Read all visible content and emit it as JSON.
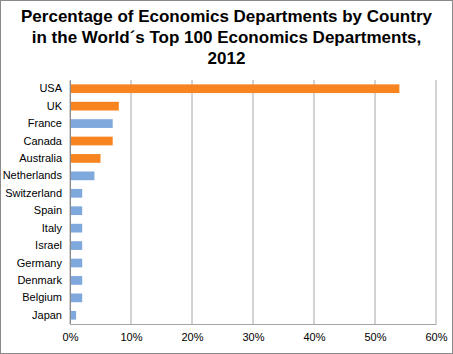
{
  "chart_data": {
    "type": "bar",
    "orientation": "horizontal",
    "title": "Percentage of Economics Departments by Country in the World´s Top 100 Economics Departments, 2012",
    "categories": [
      "USA",
      "UK",
      "France",
      "Canada",
      "Australia",
      "Netherlands",
      "Switzerland",
      "Spain",
      "Italy",
      "Israel",
      "Germany",
      "Denmark",
      "Belgium",
      "Japan"
    ],
    "values": [
      54,
      8,
      7,
      7,
      5,
      4,
      2,
      2,
      2,
      2,
      2,
      2,
      2,
      1
    ],
    "colors": [
      "#f7841e",
      "#f7841e",
      "#7fa8dc",
      "#f7841e",
      "#f7841e",
      "#7fa8dc",
      "#7fa8dc",
      "#7fa8dc",
      "#7fa8dc",
      "#7fa8dc",
      "#7fa8dc",
      "#7fa8dc",
      "#7fa8dc",
      "#7fa8dc"
    ],
    "xlim": [
      0,
      60
    ],
    "xticks": [
      {
        "value": 0,
        "label": "0%"
      },
      {
        "value": 10,
        "label": "10%"
      },
      {
        "value": 20,
        "label": "20%"
      },
      {
        "value": 30,
        "label": "30%"
      },
      {
        "value": 40,
        "label": "40%"
      },
      {
        "value": 50,
        "label": "50%"
      },
      {
        "value": 60,
        "label": "60%"
      }
    ],
    "grid": true
  }
}
